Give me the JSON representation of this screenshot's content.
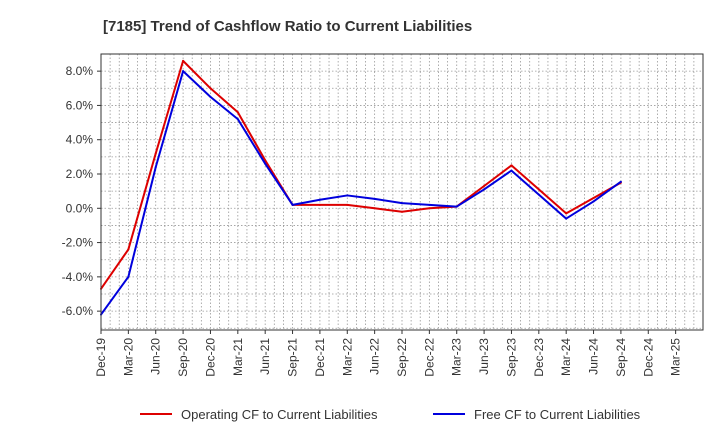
{
  "chart_data": {
    "type": "line",
    "title": "[7185]  Trend of Cashflow Ratio to Current Liabilities",
    "xlabel": "",
    "ylabel": "",
    "categories": [
      "Dec-19",
      "Mar-20",
      "Jun-20",
      "Sep-20",
      "Dec-20",
      "Mar-21",
      "Jun-21",
      "Sep-21",
      "Dec-21",
      "Mar-22",
      "Jun-22",
      "Sep-22",
      "Dec-22",
      "Mar-23",
      "Jun-23",
      "Sep-23",
      "Dec-23",
      "Mar-24",
      "Jun-24",
      "Sep-24",
      "Dec-24",
      "Mar-25"
    ],
    "yticks": [
      "8.0%",
      "6.0%",
      "4.0%",
      "2.0%",
      "0.0%",
      "-2.0%",
      "-4.0%",
      "-6.0%"
    ],
    "ytick_values": [
      8,
      6,
      4,
      2,
      0,
      -2,
      -4,
      -6
    ],
    "ylim": [
      -7.1,
      9.0
    ],
    "grid": true,
    "legend_position": "bottom",
    "series": [
      {
        "name": "Operating CF to Current Liabilities",
        "color": "#dd0000",
        "values": [
          -4.7,
          -2.4,
          3.2,
          8.6,
          7.0,
          5.6,
          2.8,
          0.2,
          0.2,
          0.2,
          0.0,
          -0.2,
          0.0,
          0.1,
          1.3,
          2.5,
          1.1,
          -0.3,
          0.6,
          1.5,
          null,
          null
        ]
      },
      {
        "name": "Free CF to Current Liabilities",
        "color": "#0000dd",
        "values": [
          -6.2,
          -4.0,
          2.4,
          8.0,
          6.5,
          5.2,
          2.6,
          0.2,
          0.5,
          0.75,
          0.55,
          0.3,
          0.2,
          0.1,
          1.1,
          2.2,
          0.8,
          -0.6,
          0.4,
          1.55,
          null,
          null
        ]
      }
    ]
  }
}
